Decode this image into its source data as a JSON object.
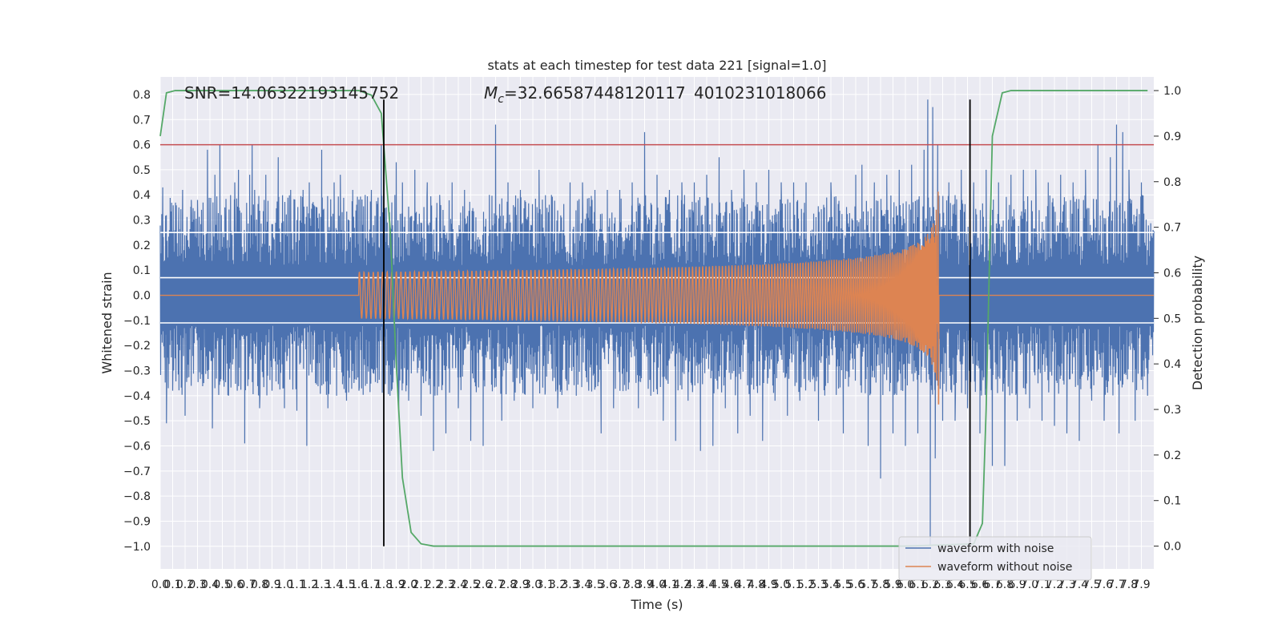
{
  "chart_data": {
    "type": "line",
    "title": "stats at each timestep for test data 221 [signal=1.0]",
    "xlabel": "Time (s)",
    "ylabel": "Whitened strain",
    "y2label": "Detection probability",
    "xlim": [
      0.0,
      8.0
    ],
    "ylim": [
      -1.09,
      0.87
    ],
    "y2lim": [
      -0.05,
      1.03
    ],
    "grid": true,
    "legend_position": "lower-right",
    "x_ticks": [
      "0.0",
      "0.1",
      "0.2",
      "0.3",
      "0.4",
      "0.5",
      "0.6",
      "0.7",
      "0.8",
      "0.9",
      "1.0",
      "1.1",
      "1.2",
      "1.3",
      "1.4",
      "1.5",
      "1.6",
      "1.7",
      "1.8",
      "1.9",
      "2.0",
      "2.1",
      "2.2",
      "2.3",
      "2.4",
      "2.5",
      "2.6",
      "2.7",
      "2.8",
      "2.9",
      "3.0",
      "3.1",
      "3.2",
      "3.3",
      "3.4",
      "3.5",
      "3.6",
      "3.7",
      "3.8",
      "3.9",
      "4.0",
      "4.1",
      "4.2",
      "4.3",
      "4.4",
      "4.5",
      "4.6",
      "4.7",
      "4.8",
      "4.9",
      "5.0",
      "5.1",
      "5.2",
      "5.3",
      "5.4",
      "5.5",
      "5.6",
      "5.7",
      "5.8",
      "5.9",
      "6.0",
      "6.1",
      "6.2",
      "6.3",
      "6.4",
      "6.5",
      "6.6",
      "6.7",
      "6.8",
      "6.9",
      "7.0",
      "7.1",
      "7.2",
      "7.3",
      "7.4",
      "7.5",
      "7.6",
      "7.7",
      "7.8",
      "7.9"
    ],
    "y_ticks": [
      "0.8",
      "0.7",
      "0.6",
      "0.5",
      "0.4",
      "0.3",
      "0.2",
      "0.1",
      "0.0",
      "−0.1",
      "−0.2",
      "−0.3",
      "−0.4",
      "−0.5",
      "−0.6",
      "−0.7",
      "−0.8",
      "−0.9",
      "−1.0"
    ],
    "y_tick_values": [
      0.8,
      0.7,
      0.6,
      0.5,
      0.4,
      0.3,
      0.2,
      0.1,
      0.0,
      -0.1,
      -0.2,
      -0.3,
      -0.4,
      -0.5,
      -0.6,
      -0.7,
      -0.8,
      -0.9,
      -1.0
    ],
    "y2_ticks": [
      "1.0",
      "0.9",
      "0.8",
      "0.7",
      "0.6",
      "0.5",
      "0.4",
      "0.3",
      "0.2",
      "0.1",
      "0.0"
    ],
    "y2_tick_values": [
      1.0,
      0.9,
      0.8,
      0.7,
      0.6,
      0.5,
      0.4,
      0.3,
      0.2,
      0.1,
      0.0
    ],
    "annotations": {
      "snr": "SNR=14.06322193145752",
      "mc_prefix": "M",
      "mc_sub": "c",
      "mc_value": "=32.66587448120117",
      "mc_overlap": "4010231018066"
    },
    "series": [
      {
        "name": "waveform with noise",
        "color": "#4c72b0",
        "noise_band": 0.28,
        "peaks": [
          [
            0.02,
            0.43
          ],
          [
            0.05,
            -0.51
          ],
          [
            0.08,
            0.28
          ],
          [
            0.1,
            -0.38
          ],
          [
            0.15,
            0.35
          ],
          [
            0.18,
            0.42
          ],
          [
            0.2,
            -0.48
          ],
          [
            0.25,
            0.38
          ],
          [
            0.3,
            0.38
          ],
          [
            0.35,
            -0.35
          ],
          [
            0.38,
            0.58
          ],
          [
            0.42,
            -0.53
          ],
          [
            0.44,
            0.48
          ],
          [
            0.48,
            0.6
          ],
          [
            0.52,
            0.35
          ],
          [
            0.55,
            -0.4
          ],
          [
            0.6,
            0.45
          ],
          [
            0.62,
            -0.38
          ],
          [
            0.63,
            0.5
          ],
          [
            0.68,
            -0.59
          ],
          [
            0.72,
            0.48
          ],
          [
            0.74,
            0.6
          ],
          [
            0.76,
            0.42
          ],
          [
            0.8,
            -0.45
          ],
          [
            0.85,
            0.48
          ],
          [
            0.9,
            -0.38
          ],
          [
            0.95,
            0.55
          ],
          [
            1.0,
            -0.45
          ],
          [
            1.05,
            0.42
          ],
          [
            1.1,
            -0.46
          ],
          [
            1.15,
            0.42
          ],
          [
            1.18,
            -0.6
          ],
          [
            1.2,
            0.45
          ],
          [
            1.25,
            -0.35
          ],
          [
            1.3,
            0.58
          ],
          [
            1.35,
            -0.45
          ],
          [
            1.4,
            0.45
          ],
          [
            1.42,
            -0.4
          ],
          [
            1.45,
            0.48
          ],
          [
            1.5,
            -0.42
          ],
          [
            1.55,
            0.42
          ],
          [
            1.6,
            -0.38
          ],
          [
            1.65,
            0.4
          ],
          [
            1.7,
            0.42
          ],
          [
            1.75,
            -0.35
          ],
          [
            1.78,
            0.6
          ],
          [
            1.8,
            -0.32
          ],
          [
            1.82,
            0.35
          ],
          [
            1.85,
            -0.4
          ],
          [
            1.9,
            0.53
          ],
          [
            1.92,
            -0.45
          ],
          [
            1.95,
            0.45
          ],
          [
            2.0,
            -0.42
          ],
          [
            2.05,
            0.5
          ],
          [
            2.1,
            -0.48
          ],
          [
            2.15,
            0.45
          ],
          [
            2.2,
            -0.62
          ],
          [
            2.25,
            0.4
          ],
          [
            2.3,
            -0.55
          ],
          [
            2.35,
            0.45
          ],
          [
            2.4,
            -0.45
          ],
          [
            2.45,
            0.42
          ],
          [
            2.5,
            -0.58
          ],
          [
            2.6,
            -0.6
          ],
          [
            2.65,
            0.4
          ],
          [
            2.7,
            0.68
          ],
          [
            2.75,
            -0.5
          ],
          [
            2.8,
            0.45
          ],
          [
            2.85,
            -0.42
          ],
          [
            2.9,
            0.42
          ],
          [
            3.0,
            -0.45
          ],
          [
            3.05,
            0.5
          ],
          [
            3.1,
            -0.38
          ],
          [
            3.15,
            0.4
          ],
          [
            3.2,
            -0.45
          ],
          [
            3.3,
            0.45
          ],
          [
            3.35,
            -0.4
          ],
          [
            3.4,
            0.45
          ],
          [
            3.45,
            -0.38
          ],
          [
            3.5,
            0.42
          ],
          [
            3.55,
            -0.55
          ],
          [
            3.6,
            0.42
          ],
          [
            3.65,
            -0.45
          ],
          [
            3.7,
            0.42
          ],
          [
            3.75,
            -0.38
          ],
          [
            3.8,
            0.45
          ],
          [
            3.85,
            -0.45
          ],
          [
            3.9,
            0.65
          ],
          [
            3.95,
            -0.4
          ],
          [
            4.0,
            0.48
          ],
          [
            4.05,
            -0.5
          ],
          [
            4.1,
            0.42
          ],
          [
            4.15,
            -0.58
          ],
          [
            4.2,
            0.45
          ],
          [
            4.25,
            -0.42
          ],
          [
            4.3,
            0.45
          ],
          [
            4.35,
            -0.62
          ],
          [
            4.4,
            0.48
          ],
          [
            4.45,
            -0.6
          ],
          [
            4.5,
            0.55
          ],
          [
            4.55,
            -0.45
          ],
          [
            4.6,
            0.42
          ],
          [
            4.65,
            -0.55
          ],
          [
            4.7,
            0.5
          ],
          [
            4.75,
            -0.48
          ],
          [
            4.8,
            0.45
          ],
          [
            4.85,
            -0.58
          ],
          [
            4.9,
            0.5
          ],
          [
            4.95,
            -0.42
          ],
          [
            5.0,
            0.45
          ],
          [
            5.05,
            -0.48
          ],
          [
            5.1,
            0.45
          ],
          [
            5.15,
            -0.42
          ],
          [
            5.2,
            0.45
          ],
          [
            5.3,
            -0.5
          ],
          [
            5.4,
            0.45
          ],
          [
            5.5,
            -0.55
          ],
          [
            5.6,
            0.48
          ],
          [
            5.65,
            0.52
          ],
          [
            5.7,
            -0.6
          ],
          [
            5.75,
            0.45
          ],
          [
            5.8,
            -0.73
          ],
          [
            5.85,
            0.48
          ],
          [
            5.9,
            -0.55
          ],
          [
            5.95,
            0.5
          ],
          [
            6.0,
            -0.6
          ],
          [
            6.05,
            0.52
          ],
          [
            6.1,
            -0.55
          ],
          [
            6.15,
            0.58
          ],
          [
            6.18,
            0.78
          ],
          [
            6.2,
            -1.0
          ],
          [
            6.22,
            0.75
          ],
          [
            6.24,
            -0.65
          ],
          [
            6.26,
            0.6
          ],
          [
            6.3,
            -0.5
          ],
          [
            6.35,
            0.45
          ],
          [
            6.4,
            -0.5
          ],
          [
            6.45,
            0.5
          ],
          [
            6.5,
            -0.45
          ],
          [
            6.55,
            0.45
          ],
          [
            6.6,
            -0.55
          ],
          [
            6.65,
            0.5
          ],
          [
            6.7,
            -0.68
          ],
          [
            6.75,
            0.45
          ],
          [
            6.8,
            -0.68
          ],
          [
            6.85,
            0.48
          ],
          [
            6.9,
            -0.5
          ],
          [
            6.95,
            0.5
          ],
          [
            7.0,
            -0.45
          ],
          [
            7.05,
            0.5
          ],
          [
            7.1,
            -0.5
          ],
          [
            7.15,
            0.45
          ],
          [
            7.2,
            -0.52
          ],
          [
            7.25,
            0.48
          ],
          [
            7.3,
            -0.55
          ],
          [
            7.35,
            0.45
          ],
          [
            7.4,
            -0.58
          ],
          [
            7.45,
            0.5
          ],
          [
            7.5,
            -0.42
          ],
          [
            7.55,
            0.6
          ],
          [
            7.6,
            -0.5
          ],
          [
            7.65,
            0.55
          ],
          [
            7.7,
            0.68
          ],
          [
            7.72,
            -0.55
          ],
          [
            7.75,
            0.65
          ],
          [
            7.8,
            0.5
          ],
          [
            7.85,
            -0.5
          ],
          [
            7.9,
            0.45
          ],
          [
            7.95,
            -0.4
          ]
        ]
      },
      {
        "name": "waveform without noise",
        "color": "#dd8452",
        "chirp_start": 1.6,
        "chirp_end": 6.27,
        "chirp_peak_amplitude": 0.6
      },
      {
        "color": "#55a868",
        "axis": "right",
        "points": [
          [
            0.0,
            0.9
          ],
          [
            0.05,
            0.995
          ],
          [
            0.12,
            1.0
          ],
          [
            1.0,
            1.0
          ],
          [
            1.6,
            1.0
          ],
          [
            1.7,
            0.99
          ],
          [
            1.78,
            0.95
          ],
          [
            1.85,
            0.7
          ],
          [
            1.9,
            0.4
          ],
          [
            1.95,
            0.15
          ],
          [
            2.02,
            0.03
          ],
          [
            2.1,
            0.005
          ],
          [
            2.2,
            0.0
          ],
          [
            3.0,
            0.0
          ],
          [
            5.0,
            0.0
          ],
          [
            6.0,
            0.0
          ],
          [
            6.55,
            0.005
          ],
          [
            6.62,
            0.05
          ],
          [
            6.65,
            0.3
          ],
          [
            6.7,
            0.9
          ],
          [
            6.78,
            0.995
          ],
          [
            6.85,
            1.0
          ],
          [
            7.95,
            1.0
          ]
        ]
      }
    ],
    "threshold": {
      "value": 0.6,
      "color": "#c44e52"
    },
    "white_lines": [
      0.25,
      0.07,
      -0.11
    ],
    "markers": [
      1.8,
      6.52
    ]
  }
}
